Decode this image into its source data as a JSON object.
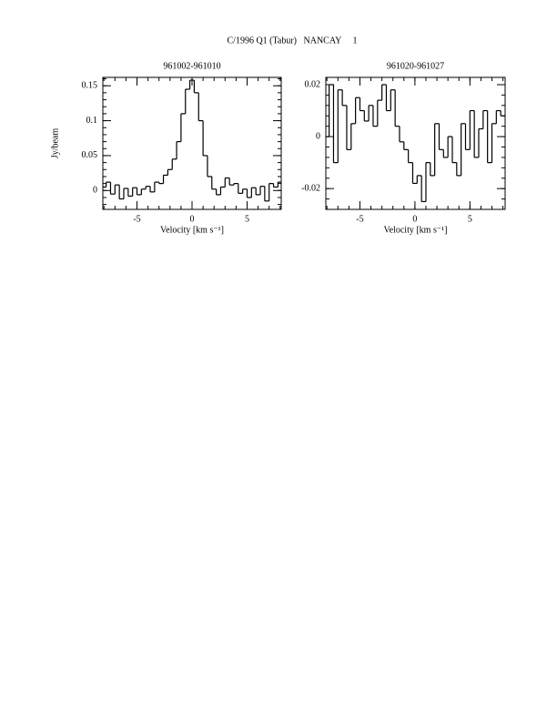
{
  "title": "C/1996 Q1 (Tabur)   NANCAY     1",
  "chart_data": [
    {
      "type": "line",
      "title": "961002-961010",
      "xlabel": "Velocity [km s⁻¹]",
      "ylabel": "Jy/beam",
      "color": "#000",
      "xlim": [
        -8.1,
        8.1
      ],
      "xticks": [
        -5,
        0,
        5
      ],
      "ylim": [
        -0.027,
        0.162
      ],
      "yticks": [
        0,
        0.05,
        0.1,
        0.15
      ],
      "x": [
        -8,
        -7.6,
        -7.2,
        -6.8,
        -6.4,
        -6,
        -5.6,
        -5.2,
        -4.8,
        -4.4,
        -4,
        -3.6,
        -3.2,
        -2.8,
        -2.4,
        -2,
        -1.6,
        -1.2,
        -0.8,
        -0.4,
        0,
        0.4,
        0.8,
        1.2,
        1.6,
        2,
        2.4,
        2.8,
        3.2,
        3.6,
        4,
        4.4,
        4.8,
        5.2,
        5.6,
        6,
        6.4,
        6.8,
        7.2,
        7.6,
        8
      ],
      "values": [
        0.005,
        0.012,
        -0.005,
        0.008,
        -0.012,
        0.003,
        -0.008,
        0.004,
        -0.006,
        0.002,
        0.006,
        -0.002,
        0.012,
        0.01,
        0.022,
        0.03,
        0.045,
        0.07,
        0.11,
        0.145,
        0.158,
        0.14,
        0.1,
        0.05,
        0.02,
        0.002,
        -0.006,
        0.005,
        0.018,
        0.008,
        0.01,
        -0.004,
        0.002,
        -0.01,
        0.004,
        -0.006,
        0.006,
        -0.015,
        0.01,
        0.005,
        0.012
      ]
    },
    {
      "type": "line",
      "title": "961020-961027",
      "xlabel": "Velocity [km s⁻¹]",
      "color": "#000",
      "xlim": [
        -8.1,
        8.2
      ],
      "xticks": [
        -5,
        0,
        5
      ],
      "ylim": [
        -0.028,
        0.0228
      ],
      "yticks": [
        -0.02,
        0,
        0.02
      ],
      "x": [
        -8,
        -7.6,
        -7.2,
        -6.8,
        -6.4,
        -6,
        -5.6,
        -5.2,
        -4.8,
        -4.4,
        -4,
        -3.6,
        -3.2,
        -2.8,
        -2.4,
        -2,
        -1.6,
        -1.2,
        -0.8,
        -0.4,
        0,
        0.4,
        0.8,
        1.2,
        1.6,
        2,
        2.4,
        2.8,
        3.2,
        3.6,
        4,
        4.4,
        4.8,
        5.2,
        5.6,
        6,
        6.4,
        6.8,
        7.2,
        7.6,
        8
      ],
      "values": [
        0.0,
        0.02,
        -0.01,
        0.018,
        0.012,
        -0.005,
        0.005,
        0.015,
        0.01,
        0.006,
        0.012,
        0.004,
        0.014,
        0.02,
        0.01,
        0.018,
        0.004,
        -0.002,
        -0.005,
        -0.01,
        -0.018,
        -0.015,
        -0.025,
        -0.01,
        -0.015,
        0.005,
        -0.005,
        -0.008,
        0.0,
        -0.01,
        -0.015,
        0.005,
        -0.005,
        0.01,
        -0.008,
        0.003,
        0.01,
        -0.01,
        0.005,
        0.01,
        0.008
      ]
    }
  ]
}
